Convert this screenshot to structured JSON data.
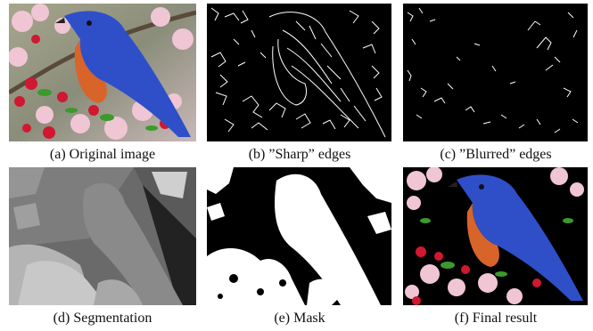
{
  "figure": {
    "panels": [
      {
        "key": "a",
        "caption": "(a) Original image",
        "icon": "bluebird-photo"
      },
      {
        "key": "b",
        "caption": "(b) ”Sharp” edges",
        "icon": "edge-map-dense"
      },
      {
        "key": "c",
        "caption": "(c) ”Blurred” edges",
        "icon": "edge-map-sparse"
      },
      {
        "key": "d",
        "caption": "(d) Segmentation",
        "icon": "grayscale-segmentation"
      },
      {
        "key": "e",
        "caption": "(e) Mask",
        "icon": "binary-mask"
      },
      {
        "key": "f",
        "caption": "(f) Final result",
        "icon": "bluebird-on-black"
      }
    ]
  },
  "colors": {
    "bird_blue": "#2f4fc9",
    "bird_orange": "#d8642a",
    "flower_red": "#d01830",
    "blossom_pink": "#f0c6d4",
    "leaf_green": "#3c9a2c"
  }
}
